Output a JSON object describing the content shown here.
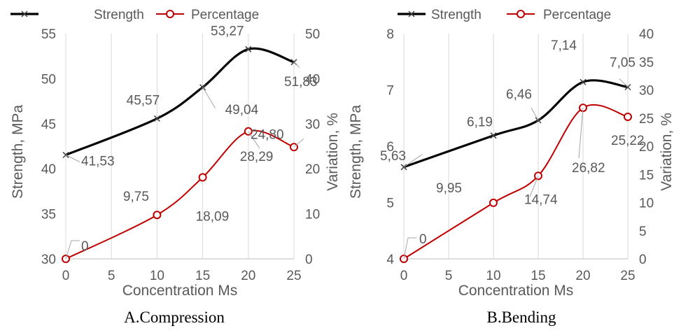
{
  "chart_data": [
    {
      "type": "line",
      "caption": "A.Compression",
      "x": [
        0,
        10,
        15,
        20,
        25
      ],
      "xlabel": "Concentration Ms",
      "xlim": [
        0,
        25
      ],
      "xticks": [
        0,
        5,
        10,
        15,
        20,
        25
      ],
      "ylabel": "Strength, MPa",
      "ylim": [
        30,
        55
      ],
      "yticks": [
        30,
        35,
        40,
        45,
        50,
        55
      ],
      "y2label": "Variation, %",
      "y2lim": [
        0,
        50
      ],
      "y2ticks": [
        0,
        10,
        20,
        30,
        40,
        50
      ],
      "grid": "vertical",
      "legend_position": "top",
      "series": [
        {
          "name": "Strength",
          "axis": "left",
          "values": [
            41.53,
            45.57,
            49.04,
            53.27,
            51.83
          ],
          "labels": [
            "41,53",
            "45,57",
            "49,04",
            "53,27",
            "51,83"
          ],
          "color": "#000000",
          "marker": "x"
        },
        {
          "name": "Percentage",
          "axis": "right",
          "values": [
            0,
            9.75,
            18.09,
            28.29,
            24.8
          ],
          "labels": [
            "0",
            "9,75",
            "18,09",
            "28,29",
            "24,80"
          ],
          "color": "#c00000",
          "marker": "o"
        }
      ]
    },
    {
      "type": "line",
      "caption": "B.Bending",
      "x": [
        0,
        10,
        15,
        20,
        25
      ],
      "xlabel": "Concentration Ms",
      "xlim": [
        0,
        25
      ],
      "xticks": [
        0,
        5,
        10,
        15,
        20,
        25
      ],
      "ylabel": "Strength, MPa",
      "ylim": [
        4,
        8
      ],
      "yticks": [
        4,
        5,
        6,
        7,
        8
      ],
      "y2label": "Variation, %",
      "y2lim": [
        0,
        40
      ],
      "y2ticks": [
        0,
        5,
        10,
        15,
        20,
        25,
        30,
        35,
        40
      ],
      "grid": "vertical",
      "legend_position": "top",
      "series": [
        {
          "name": "Strength",
          "axis": "left",
          "values": [
            5.63,
            6.19,
            6.46,
            7.14,
            7.05
          ],
          "labels": [
            "5,63",
            "6,19",
            "6,46",
            "7,14",
            "7,05"
          ],
          "color": "#000000",
          "marker": "x"
        },
        {
          "name": "Percentage",
          "axis": "right",
          "values": [
            0,
            9.95,
            14.74,
            26.82,
            25.22
          ],
          "labels": [
            "0",
            "9,95",
            "14,74",
            "26,82",
            "25,22"
          ],
          "color": "#c00000",
          "marker": "o"
        }
      ]
    }
  ]
}
